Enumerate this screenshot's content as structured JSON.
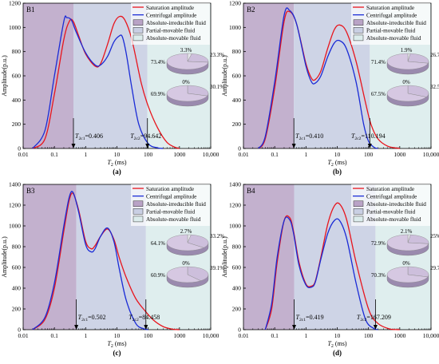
{
  "figure": {
    "colors": {
      "saturation": "#e8141c",
      "centrifugal": "#1a2bd6",
      "irreducible_fill": "#b9a3c6",
      "partial_fill": "#c9cfe3",
      "movable_fill": "#dcecec",
      "pie_top": "#d6c8e2",
      "pie_side": "#9a8aae",
      "pie_slice": "#e6e6ec"
    },
    "legend_labels": [
      "Saturation amplitude",
      "Centrifugal amplitude",
      "Absolute-irreducible fluid",
      "Partial-movable fluid",
      "Absolute-movable fluid"
    ]
  },
  "chart_data": [
    {
      "type": "line",
      "panel_label": "B1",
      "caption": "(a)",
      "xlabel": "T2 (ms)",
      "ylabel": "Amplitude(p.u.)",
      "x_scale": "log",
      "xlim": [
        0.01,
        10000
      ],
      "ylim": [
        0,
        1200
      ],
      "x_ticks": [
        "0.01",
        "0.1",
        "1",
        "10",
        "100",
        "1000",
        "10,000"
      ],
      "y_ticks": [
        "0",
        "200",
        "400",
        "600",
        "800",
        "1000",
        "1200"
      ],
      "cutoff1_label": "T2c1=0.406",
      "cutoff2_label": "T2c2=94.642",
      "regions": {
        "irreducible_end": 0.406,
        "movable_start": 94.642
      },
      "series": [
        {
          "name": "Saturation amplitude",
          "x": [
            0.02,
            0.05,
            0.1,
            0.2,
            0.3,
            0.4,
            0.6,
            1,
            2,
            3,
            5,
            8,
            12,
            18,
            30,
            60,
            100,
            200,
            400,
            800,
            1000
          ],
          "y": [
            0,
            80,
            450,
            900,
            1050,
            1050,
            930,
            780,
            680,
            700,
            860,
            1030,
            1090,
            1060,
            900,
            540,
            350,
            170,
            50,
            5,
            0
          ]
        },
        {
          "name": "Centrifugal amplitude",
          "x": [
            0.02,
            0.05,
            0.1,
            0.2,
            0.25,
            0.35,
            0.5,
            1,
            2,
            3,
            5,
            8,
            12,
            15,
            20,
            30,
            50,
            100,
            200,
            300
          ],
          "y": [
            0,
            150,
            600,
            1050,
            1080,
            1060,
            960,
            790,
            690,
            690,
            760,
            880,
            930,
            920,
            780,
            500,
            200,
            40,
            5,
            0
          ]
        }
      ],
      "pies": [
        {
          "labels": [
            "3.3%",
            "23.3%",
            "73.4%"
          ],
          "values": [
            3.3,
            23.3,
            73.4
          ]
        },
        {
          "labels": [
            "0%",
            "30.1%",
            "69.9%"
          ],
          "values": [
            0,
            30.1,
            69.9
          ]
        }
      ]
    },
    {
      "type": "line",
      "panel_label": "B2",
      "caption": "(b)",
      "xlabel": "T2 (ms)",
      "ylabel": "Amplitude(p.u.)",
      "x_scale": "log",
      "xlim": [
        0.01,
        10000
      ],
      "ylim": [
        0,
        1200
      ],
      "x_ticks": [
        "0.01",
        "0.1",
        "1",
        "10",
        "100",
        "1000",
        "10,000"
      ],
      "y_ticks": [
        "0",
        "200",
        "400",
        "600",
        "800",
        "1000",
        "1200"
      ],
      "cutoff1_label": "T2c1=0.410",
      "cutoff2_label": "T2c2=110.194",
      "regions": {
        "irreducible_end": 0.41,
        "movable_start": 110.194
      },
      "series": [
        {
          "name": "Saturation amplitude",
          "x": [
            0.03,
            0.05,
            0.1,
            0.2,
            0.3,
            0.5,
            1,
            1.5,
            2,
            3,
            5,
            8,
            12,
            20,
            40,
            80,
            120,
            200,
            400,
            800,
            1000
          ],
          "y": [
            0,
            80,
            500,
            1050,
            1130,
            1030,
            700,
            580,
            570,
            640,
            830,
            980,
            1020,
            960,
            720,
            380,
            200,
            80,
            20,
            3,
            0
          ]
        },
        {
          "name": "Centrifugal amplitude",
          "x": [
            0.03,
            0.05,
            0.1,
            0.2,
            0.3,
            0.5,
            1,
            1.5,
            2,
            3,
            5,
            8,
            12,
            20,
            40,
            70,
            100,
            150,
            200
          ],
          "y": [
            0,
            100,
            550,
            1100,
            1140,
            1030,
            680,
            550,
            540,
            600,
            760,
            870,
            890,
            820,
            550,
            200,
            60,
            10,
            0
          ]
        }
      ],
      "pies": [
        {
          "labels": [
            "1.9%",
            "26.7%",
            "71.4%"
          ],
          "values": [
            1.9,
            26.7,
            71.4
          ]
        },
        {
          "labels": [
            "0%",
            "32.5%",
            "67.5%"
          ],
          "values": [
            0,
            32.5,
            67.5
          ]
        }
      ]
    },
    {
      "type": "line",
      "panel_label": "B3",
      "caption": "(c)",
      "xlabel": "T2 (ms)",
      "ylabel": "Amplitude(p.u.)",
      "x_scale": "log",
      "xlim": [
        0.01,
        10000
      ],
      "ylim": [
        0,
        1400
      ],
      "x_ticks": [
        "0.01",
        "0.1",
        "1",
        "10",
        "100",
        "1000",
        "10,000"
      ],
      "y_ticks": [
        "0",
        "200",
        "400",
        "600",
        "800",
        "1000",
        "1200",
        "1400"
      ],
      "cutoff1_label": "T2c1=0.502",
      "cutoff2_label": "T2c2=84.458",
      "regions": {
        "irreducible_end": 0.502,
        "movable_start": 84.458
      },
      "series": [
        {
          "name": "Saturation amplitude",
          "x": [
            0.02,
            0.05,
            0.1,
            0.2,
            0.3,
            0.4,
            0.6,
            1,
            1.5,
            2,
            3,
            5,
            8,
            12,
            20,
            40,
            80,
            150,
            300,
            600,
            1000
          ],
          "y": [
            0,
            100,
            400,
            950,
            1250,
            1310,
            1150,
            850,
            780,
            810,
            900,
            970,
            870,
            690,
            500,
            300,
            180,
            90,
            30,
            5,
            0
          ]
        },
        {
          "name": "Centrifugal amplitude",
          "x": [
            0.02,
            0.05,
            0.1,
            0.2,
            0.3,
            0.4,
            0.6,
            1,
            1.5,
            2,
            3,
            5,
            8,
            12,
            20,
            40,
            70,
            100
          ],
          "y": [
            0,
            120,
            450,
            1000,
            1280,
            1320,
            1130,
            820,
            750,
            780,
            900,
            980,
            850,
            580,
            280,
            60,
            10,
            0
          ]
        }
      ],
      "pies": [
        {
          "labels": [
            "2.7%",
            "33.2%",
            "64.1%"
          ],
          "values": [
            2.7,
            33.2,
            64.1
          ]
        },
        {
          "labels": [
            "0%",
            "39.1%",
            "60.9%"
          ],
          "values": [
            0,
            39.1,
            60.9
          ]
        }
      ]
    },
    {
      "type": "line",
      "panel_label": "B4",
      "caption": "(d)",
      "xlabel": "T2 (ms)",
      "ylabel": "Amplitude(p.u.)",
      "x_scale": "log",
      "xlim": [
        0.01,
        10000
      ],
      "ylim": [
        0,
        1400
      ],
      "x_ticks": [
        "0.01",
        "0.1",
        "1",
        "10",
        "100",
        "1000",
        "10,000"
      ],
      "y_ticks": [
        "0",
        "200",
        "400",
        "600",
        "800",
        "1000",
        "1200",
        "1400"
      ],
      "cutoff1_label": "T2c1=0.419",
      "cutoff2_label": "T2c2=167.209",
      "regions": {
        "irreducible_end": 0.419,
        "movable_start": 167.209
      },
      "series": [
        {
          "name": "Saturation amplitude",
          "x": [
            0.05,
            0.08,
            0.12,
            0.2,
            0.3,
            0.4,
            0.6,
            1,
            1.5,
            2,
            3,
            5,
            8,
            12,
            20,
            40,
            100,
            200,
            500,
            1000
          ],
          "y": [
            0,
            200,
            650,
            1050,
            1080,
            950,
            650,
            440,
            420,
            470,
            700,
            1020,
            1190,
            1210,
            1060,
            650,
            200,
            60,
            5,
            0
          ]
        },
        {
          "name": "Centrifugal amplitude",
          "x": [
            0.05,
            0.08,
            0.12,
            0.2,
            0.3,
            0.4,
            0.6,
            1,
            1.5,
            2,
            3,
            5,
            8,
            12,
            20,
            40,
            80,
            150,
            200
          ],
          "y": [
            0,
            250,
            700,
            1050,
            1060,
            930,
            620,
            430,
            410,
            460,
            680,
            930,
            1050,
            1050,
            880,
            450,
            100,
            10,
            0
          ]
        }
      ],
      "pies": [
        {
          "labels": [
            "2.1%",
            "25%",
            "72.9%"
          ],
          "values": [
            2.1,
            25,
            72.9
          ]
        },
        {
          "labels": [
            "0%",
            "29.7%",
            "70.3%"
          ],
          "values": [
            0,
            29.7,
            70.3
          ]
        }
      ]
    }
  ]
}
